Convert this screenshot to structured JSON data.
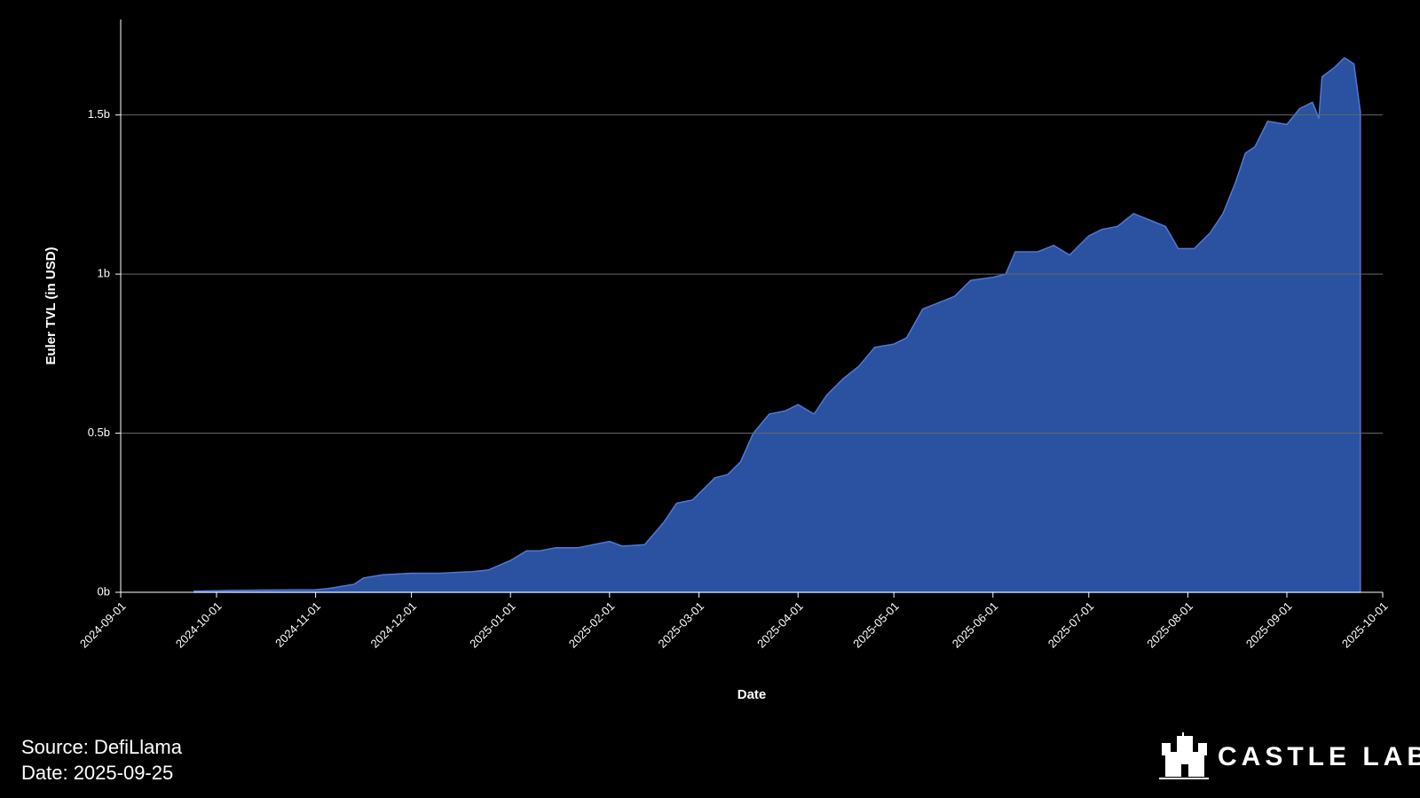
{
  "chart_data": {
    "type": "area",
    "y_label": "Euler TVL (in USD)",
    "x_label": "Date",
    "source": "Source: DefiLlama",
    "date_note": "Date: 2025-09-25",
    "brand": "CASTLE LABS",
    "color": "#2a52a0",
    "line_color": "#4f78d6",
    "grid": true,
    "xlim": [
      "2024-09-01",
      "2025-10-01"
    ],
    "xticks": [
      "2024-09-01",
      "2024-10-01",
      "2024-11-01",
      "2024-12-01",
      "2025-01-01",
      "2025-02-01",
      "2025-03-01",
      "2025-04-01",
      "2025-05-01",
      "2025-06-01",
      "2025-07-01",
      "2025-08-01",
      "2025-09-01",
      "2025-10-01"
    ],
    "ylim": [
      0,
      1800000000
    ],
    "yticks": [
      {
        "value": 0,
        "label": "0b"
      },
      {
        "value": 500000000,
        "label": "0.5b"
      },
      {
        "value": 1000000000,
        "label": "1b"
      },
      {
        "value": 1500000000,
        "label": "1.5b"
      }
    ],
    "x": [
      "2024-09-24",
      "2024-10-01",
      "2024-10-15",
      "2024-11-01",
      "2024-11-05",
      "2024-11-10",
      "2024-11-13",
      "2024-11-16",
      "2024-11-22",
      "2024-12-01",
      "2024-12-10",
      "2024-12-20",
      "2024-12-25",
      "2025-01-01",
      "2025-01-06",
      "2025-01-10",
      "2025-01-15",
      "2025-01-22",
      "2025-01-27",
      "2025-02-01",
      "2025-02-05",
      "2025-02-12",
      "2025-02-18",
      "2025-02-22",
      "2025-02-27",
      "2025-03-01",
      "2025-03-06",
      "2025-03-10",
      "2025-03-14",
      "2025-03-18",
      "2025-03-23",
      "2025-03-28",
      "2025-04-01",
      "2025-04-06",
      "2025-04-10",
      "2025-04-15",
      "2025-04-20",
      "2025-04-25",
      "2025-05-01",
      "2025-05-05",
      "2025-05-10",
      "2025-05-15",
      "2025-05-20",
      "2025-05-25",
      "2025-06-01",
      "2025-06-05",
      "2025-06-08",
      "2025-06-15",
      "2025-06-20",
      "2025-06-25",
      "2025-07-01",
      "2025-07-05",
      "2025-07-10",
      "2025-07-15",
      "2025-07-20",
      "2025-07-25",
      "2025-07-29",
      "2025-08-03",
      "2025-08-08",
      "2025-08-12",
      "2025-08-16",
      "2025-08-19",
      "2025-08-22",
      "2025-08-26",
      "2025-09-01",
      "2025-09-05",
      "2025-09-09",
      "2025-09-11",
      "2025-09-12",
      "2025-09-16",
      "2025-09-19",
      "2025-09-22",
      "2025-09-24"
    ],
    "values": [
      4000000,
      5000000,
      7000000,
      8000000,
      12000000,
      20000000,
      25000000,
      45000000,
      55000000,
      60000000,
      60000000,
      65000000,
      70000000,
      100000000,
      130000000,
      130000000,
      140000000,
      140000000,
      150000000,
      160000000,
      145000000,
      150000000,
      220000000,
      280000000,
      290000000,
      310000000,
      360000000,
      370000000,
      410000000,
      500000000,
      560000000,
      570000000,
      590000000,
      560000000,
      620000000,
      670000000,
      710000000,
      770000000,
      780000000,
      800000000,
      890000000,
      910000000,
      930000000,
      980000000,
      990000000,
      1000000000,
      1070000000,
      1070000000,
      1090000000,
      1060000000,
      1120000000,
      1140000000,
      1150000000,
      1190000000,
      1170000000,
      1150000000,
      1080000000,
      1080000000,
      1130000000,
      1190000000,
      1290000000,
      1380000000,
      1400000000,
      1480000000,
      1470000000,
      1520000000,
      1540000000,
      1490000000,
      1620000000,
      1650000000,
      1680000000,
      1660000000,
      1510000000
    ]
  }
}
